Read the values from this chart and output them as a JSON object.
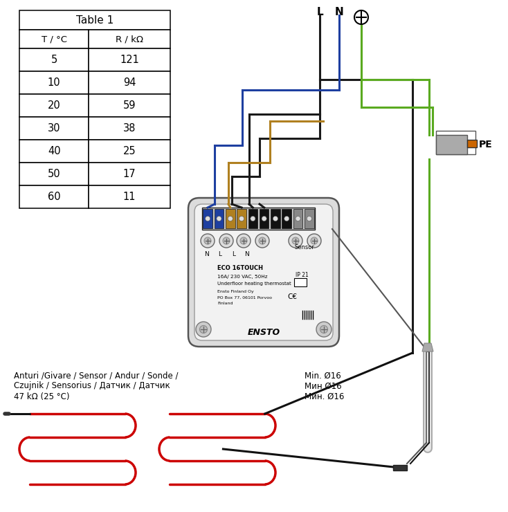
{
  "bg_color": "#ffffff",
  "table_title": "Table 1",
  "table_headers": [
    "T / °C",
    "R / kΩ"
  ],
  "table_rows": [
    [
      "5",
      "121"
    ],
    [
      "10",
      "94"
    ],
    [
      "20",
      "59"
    ],
    [
      "30",
      "38"
    ],
    [
      "40",
      "25"
    ],
    [
      "50",
      "17"
    ],
    [
      "60",
      "11"
    ]
  ],
  "wire_L_label": "L",
  "wire_N_label": "N",
  "wire_PE_label": "PE",
  "sensor_label_line1": "Anturi /Givare / Sensor / Andur / Sonde /",
  "sensor_label_line2": "Czujnik / Sensorius / Датчик / Датчик",
  "sensor_label_line3": "47 kΩ (25 °C)",
  "min_label_line1": "Min. Ø16",
  "min_label_line2": "Мин Ø16",
  "min_label_line3": "Мин. Ø16",
  "wire_black": "#1a1a1a",
  "wire_blue": "#1e3fa0",
  "wire_brown": "#b08020",
  "wire_green": "#5aaa20",
  "device_border": "#555555",
  "heating_cable_red": "#cc0000",
  "heating_cable_black": "#111111"
}
